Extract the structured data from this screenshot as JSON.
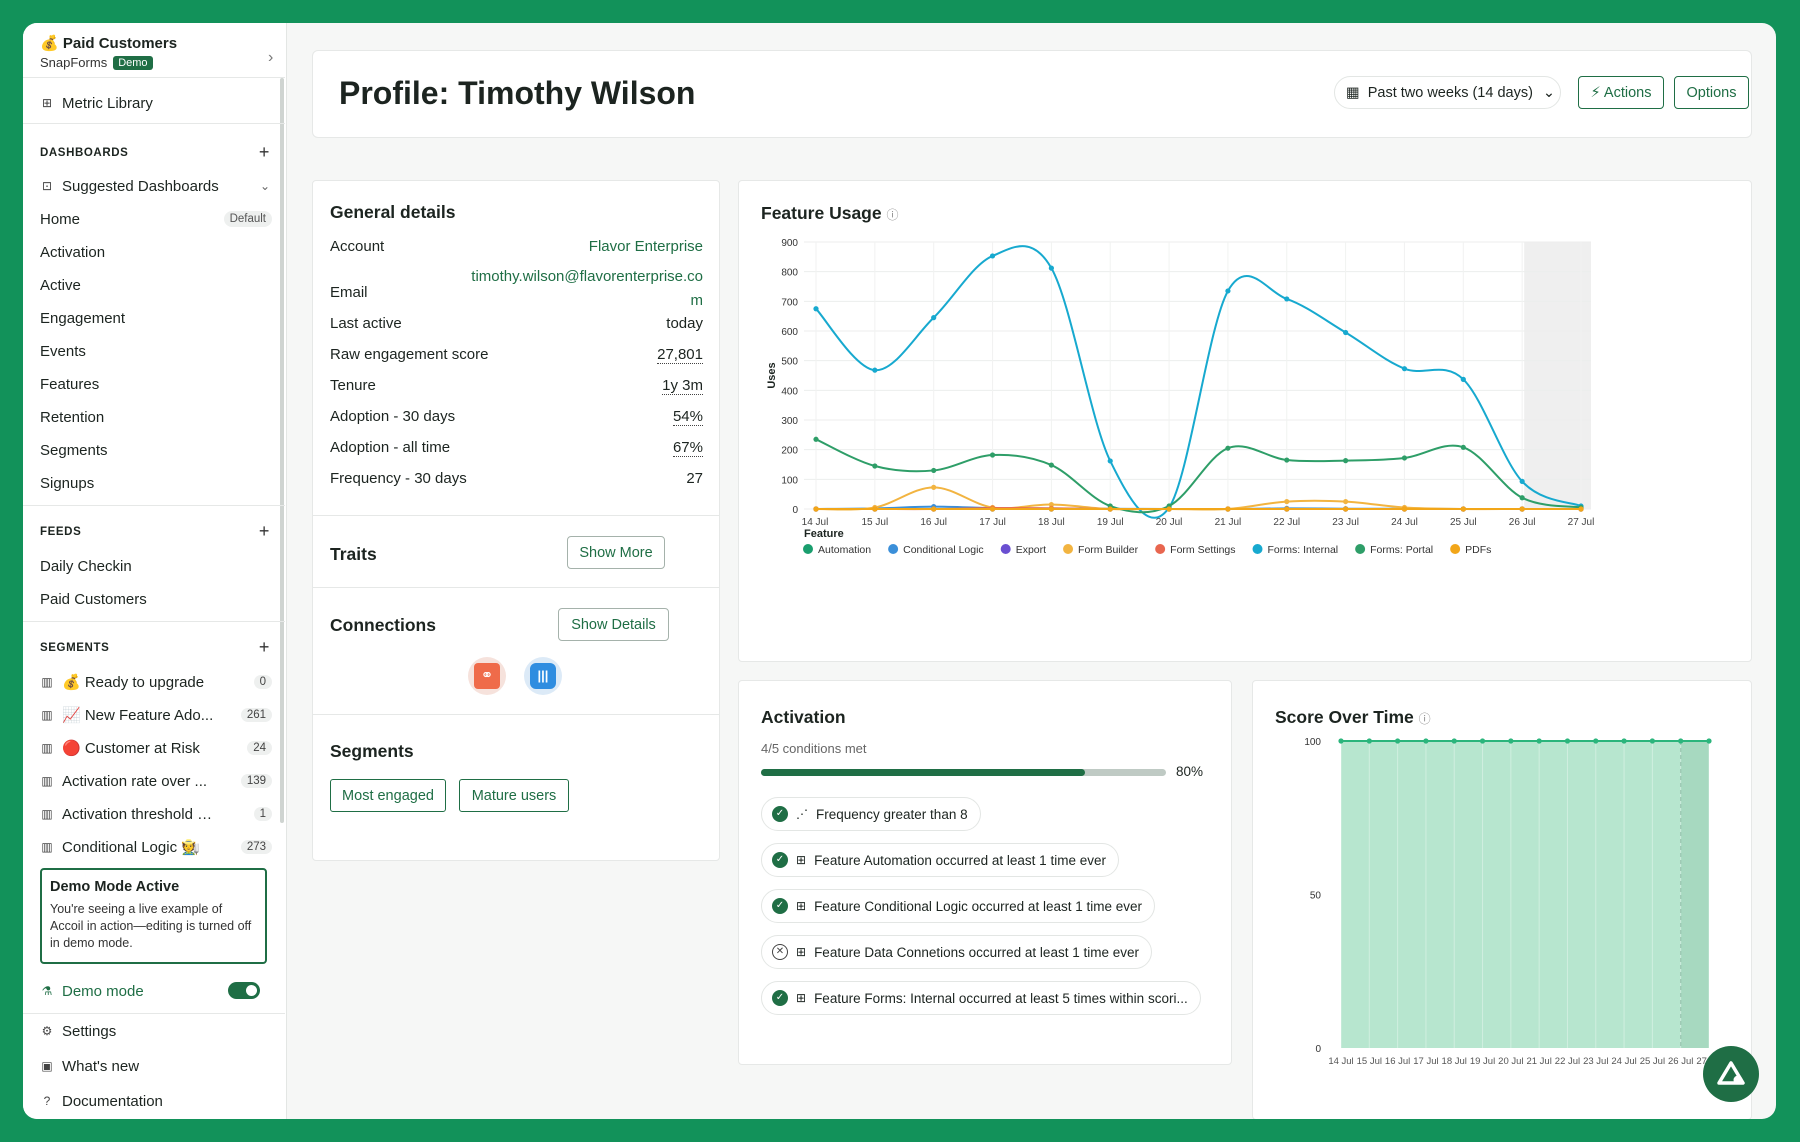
{
  "workspace": {
    "emoji": "💰",
    "title": "Paid Customers",
    "org": "SnapForms",
    "badge": "Demo"
  },
  "sidebar": {
    "metric_library": "Metric Library",
    "dashboards_header": "DASHBOARDS",
    "suggested": "Suggested Dashboards",
    "dashboards": [
      {
        "label": "Home",
        "badge": "Default"
      },
      {
        "label": "Activation"
      },
      {
        "label": "Active"
      },
      {
        "label": "Engagement"
      },
      {
        "label": "Events"
      },
      {
        "label": "Features"
      },
      {
        "label": "Retention"
      },
      {
        "label": "Segments"
      },
      {
        "label": "Signups"
      }
    ],
    "feeds_header": "FEEDS",
    "feeds": [
      "Daily Checkin",
      "Paid Customers"
    ],
    "segments_header": "SEGMENTS",
    "segments": [
      {
        "label": "💰 Ready to upgrade",
        "count": "0"
      },
      {
        "label": "📈 New Feature Ado...",
        "count": "261"
      },
      {
        "label": "🔴 Customer at Risk",
        "count": "24"
      },
      {
        "label": "Activation rate over ...",
        "count": "139"
      },
      {
        "label": "Activation threshold m...",
        "count": "1"
      },
      {
        "label": "Conditional Logic 🧑‍🌾",
        "count": "273"
      }
    ],
    "demo_box": {
      "title": "Demo Mode Active",
      "text": "You're seeing a live example of Accoil in action—editing is turned off in demo mode."
    },
    "demo_mode": "Demo mode",
    "settings": "Settings",
    "whats_new": "What's new",
    "documentation": "Documentation"
  },
  "header": {
    "title": "Profile: Timothy Wilson",
    "date_range": "Past two weeks (14 days)",
    "actions": "⚡ Actions",
    "options": "Options"
  },
  "general": {
    "title": "General details",
    "rows": [
      {
        "label": "Account",
        "value": "Flavor Enterprise"
      },
      {
        "label": "Email",
        "value": "timothy.wilson@flavorenterprise.co",
        "value2": "m"
      },
      {
        "label": "Last active",
        "value": "today"
      },
      {
        "label": "Raw engagement score",
        "value": "27,801"
      },
      {
        "label": "Tenure",
        "value": "1y 3m"
      },
      {
        "label": "Adoption - 30 days",
        "value": "54%"
      },
      {
        "label": "Adoption - all time",
        "value": "67%"
      },
      {
        "label": "Frequency - 30 days",
        "value": "27"
      }
    ],
    "traits": "Traits",
    "show_more": "Show More",
    "connections": "Connections",
    "show_details": "Show Details",
    "segments": "Segments",
    "segment_pills": [
      "Most engaged",
      "Mature users"
    ]
  },
  "activation": {
    "title": "Activation",
    "subtitle": "4/5 conditions met",
    "progress": 0.8,
    "progress_label": "80%",
    "conditions": [
      {
        "text": "Frequency greater than 8",
        "met": true,
        "icon": "chart-icon"
      },
      {
        "text": "Feature Automation occurred at least 1 time ever",
        "met": true,
        "icon": "grid-icon"
      },
      {
        "text": "Feature Conditional Logic occurred at least 1 time ever",
        "met": true,
        "icon": "grid-icon"
      },
      {
        "text": "Feature Data Connetions occurred at least 1 time ever",
        "met": false,
        "icon": "grid-icon"
      },
      {
        "text": "Feature Forms: Internal occurred at least 5 times within scori...",
        "met": true,
        "icon": "grid-icon"
      }
    ]
  },
  "chart_data": [
    {
      "type": "line",
      "title": "Feature Usage",
      "ylabel": "Uses",
      "legend_title": "Feature",
      "ylim": [
        0,
        900
      ],
      "yticks": [
        0,
        100,
        200,
        300,
        400,
        500,
        600,
        700,
        800,
        900
      ],
      "categories": [
        "14 Jul",
        "15 Jul",
        "16 Jul",
        "17 Jul",
        "18 Jul",
        "19 Jul",
        "20 Jul",
        "21 Jul",
        "22 Jul",
        "23 Jul",
        "24 Jul",
        "25 Jul",
        "26 Jul",
        "27 Jul"
      ],
      "series": [
        {
          "name": "Automation",
          "color": "#1a9e6e",
          "values": [
            0,
            0,
            0,
            0,
            0,
            0,
            0,
            0,
            0,
            0,
            0,
            0,
            0,
            0
          ]
        },
        {
          "name": "Conditional Logic",
          "color": "#3b8fd9",
          "values": [
            0,
            2,
            8,
            3,
            2,
            1,
            0,
            0,
            2,
            1,
            1,
            0,
            0,
            0
          ]
        },
        {
          "name": "Export",
          "color": "#6a4fd1",
          "values": [
            0,
            0,
            0,
            0,
            0,
            0,
            0,
            0,
            0,
            0,
            0,
            0,
            0,
            0
          ]
        },
        {
          "name": "Form Builder",
          "color": "#f2b441",
          "values": [
            0,
            5,
            73,
            5,
            15,
            0,
            0,
            0,
            25,
            25,
            5,
            0,
            0,
            0
          ]
        },
        {
          "name": "Form Settings",
          "color": "#e8664f",
          "values": [
            0,
            0,
            0,
            3,
            2,
            0,
            0,
            0,
            0,
            0,
            0,
            0,
            0,
            0
          ]
        },
        {
          "name": "Forms: Internal",
          "color": "#17a9cf",
          "values": [
            675,
            468,
            645,
            853,
            812,
            162,
            5,
            735,
            708,
            595,
            473,
            437,
            93,
            10
          ]
        },
        {
          "name": "Forms: Portal",
          "color": "#2e9e68",
          "values": [
            235,
            145,
            130,
            182,
            148,
            10,
            10,
            205,
            165,
            163,
            172,
            208,
            38,
            5
          ]
        },
        {
          "name": "PDFs",
          "color": "#f2a619",
          "values": [
            0,
            0,
            0,
            0,
            0,
            0,
            0,
            0,
            0,
            0,
            0,
            0,
            0,
            0
          ]
        }
      ]
    },
    {
      "type": "area",
      "title": "Score Over Time",
      "ylim": [
        0,
        100
      ],
      "yticks": [
        0,
        50,
        100
      ],
      "categories": [
        "14 Jul",
        "15 Jul",
        "16 Jul",
        "17 Jul",
        "18 Jul",
        "19 Jul",
        "20 Jul",
        "21 Jul",
        "22 Jul",
        "23 Jul",
        "24 Jul",
        "25 Jul",
        "26 Jul",
        "27 Jul"
      ],
      "tick_labels": [
        "14 Jul",
        "15 Jul",
        "16 Jul",
        "17 Jul",
        "18 Jul",
        "19 Jul",
        "20 Jul",
        "21 Jul",
        "22 Jul",
        "23 Jul",
        "24 Jul",
        "25 Jul",
        "26 Jul",
        "27 Jul"
      ],
      "series": [
        {
          "name": "",
          "color": "#2bb57c",
          "values": [
            100,
            100,
            100,
            100,
            100,
            100,
            100,
            100,
            100,
            100,
            100,
            100,
            100,
            100
          ]
        }
      ]
    }
  ]
}
